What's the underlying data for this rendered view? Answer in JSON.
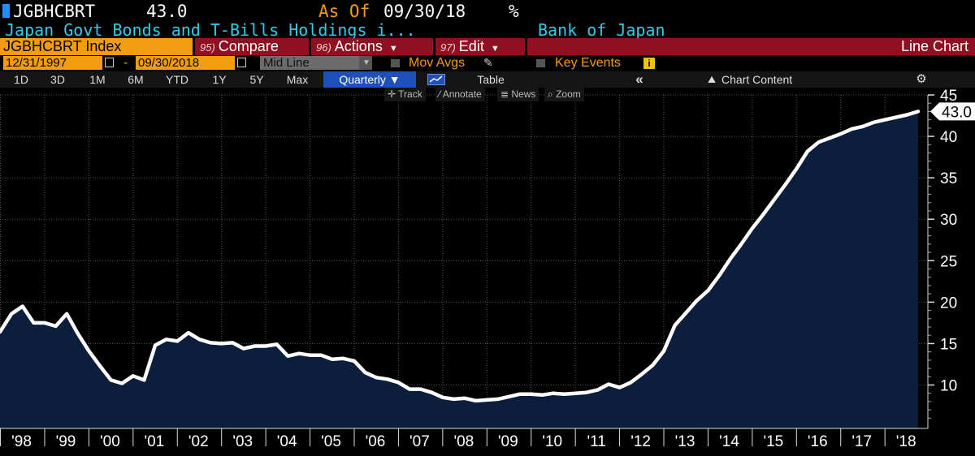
{
  "header": {
    "ticker": "JGBHCBRT",
    "last_value": "43.0",
    "as_of_label": "As Of",
    "as_of_date": "09/30/18",
    "unit": "%",
    "description": "Japan Govt Bonds and T-Bills Holdings i...",
    "source": "Bank of Japan"
  },
  "toolbar": {
    "security": "JGBHCBRT Index",
    "compare": {
      "num": "95)",
      "label": "Compare"
    },
    "actions": {
      "num": "96)",
      "label": "Actions"
    },
    "edit": {
      "num": "97)",
      "label": "Edit"
    },
    "chart_type": "Line Chart"
  },
  "range": {
    "start": "12/31/1997",
    "separator": "-",
    "end": "09/30/2018",
    "mode": "Mid Line",
    "mov_avgs": "Mov Avgs",
    "key_events": "Key Events",
    "info_badge": "i"
  },
  "periods": {
    "items": [
      "1D",
      "3D",
      "1M",
      "6M",
      "YTD",
      "1Y",
      "5Y",
      "Max"
    ],
    "frequency": "Quarterly ▼",
    "table": "Table",
    "collapse": "«",
    "chart_content": "Chart Content"
  },
  "tools": [
    "Track",
    "Annotate",
    "News",
    "Zoom"
  ],
  "colors": {
    "accent_orange": "#f39c12",
    "toolbar_red": "#8f1020",
    "header_cyan": "#36c9e8",
    "area_fill": "#0b1e3c",
    "line": "#ffffff",
    "active_tab": "#1f4fb8"
  },
  "chart_data": {
    "type": "area",
    "last_value_label": "43.0",
    "ylim": [
      5,
      45
    ],
    "yticks": [
      10,
      15,
      20,
      25,
      30,
      35,
      40,
      45
    ],
    "xlim": [
      1997.99,
      2018.75
    ],
    "xtick_labels": [
      "'98",
      "'99",
      "'00",
      "'01",
      "'02",
      "'03",
      "'04",
      "'05",
      "'06",
      "'07",
      "'08",
      "'09",
      "'10",
      "'11",
      "'12",
      "'13",
      "'14",
      "'15",
      "'16",
      "'17",
      "'18"
    ],
    "xtick_years": [
      1998,
      1999,
      2000,
      2001,
      2002,
      2003,
      2004,
      2005,
      2006,
      2007,
      2008,
      2009,
      2010,
      2011,
      2012,
      2013,
      2014,
      2015,
      2016,
      2017,
      2018
    ],
    "grid": true,
    "x": [
      1997.99,
      1998.25,
      1998.5,
      1998.75,
      1999.0,
      1999.25,
      1999.5,
      1999.75,
      2000.0,
      2000.25,
      2000.5,
      2000.75,
      2001.0,
      2001.25,
      2001.5,
      2001.75,
      2002.0,
      2002.25,
      2002.5,
      2002.75,
      2003.0,
      2003.25,
      2003.5,
      2003.75,
      2004.0,
      2004.25,
      2004.5,
      2004.75,
      2005.0,
      2005.25,
      2005.5,
      2005.75,
      2006.0,
      2006.25,
      2006.5,
      2006.75,
      2007.0,
      2007.25,
      2007.5,
      2007.75,
      2008.0,
      2008.25,
      2008.5,
      2008.75,
      2009.0,
      2009.25,
      2009.5,
      2009.75,
      2010.0,
      2010.25,
      2010.5,
      2010.75,
      2011.0,
      2011.25,
      2011.5,
      2011.75,
      2012.0,
      2012.25,
      2012.5,
      2012.75,
      2013.0,
      2013.25,
      2013.5,
      2013.75,
      2014.0,
      2014.25,
      2014.5,
      2014.75,
      2015.0,
      2015.25,
      2015.5,
      2015.75,
      2016.0,
      2016.25,
      2016.5,
      2016.75,
      2017.0,
      2017.25,
      2017.5,
      2017.75,
      2018.0,
      2018.25,
      2018.5,
      2018.75
    ],
    "values": [
      16.4,
      18.6,
      19.5,
      17.5,
      17.5,
      17.1,
      18.6,
      16.2,
      14.1,
      12.3,
      10.6,
      10.2,
      11.1,
      10.6,
      14.8,
      15.5,
      15.3,
      16.3,
      15.5,
      15.1,
      15.0,
      15.1,
      14.4,
      14.7,
      14.7,
      14.9,
      13.5,
      13.8,
      13.6,
      13.6,
      13.1,
      13.2,
      12.9,
      11.5,
      10.9,
      10.7,
      10.3,
      9.5,
      9.5,
      9.1,
      8.5,
      8.3,
      8.4,
      8.1,
      8.2,
      8.3,
      8.6,
      8.9,
      8.9,
      8.8,
      9.0,
      8.9,
      9.0,
      9.1,
      9.4,
      10.1,
      9.7,
      10.3,
      11.3,
      12.4,
      14.1,
      17.2,
      18.7,
      20.2,
      21.4,
      23.2,
      25.2,
      27.0,
      28.9,
      30.6,
      32.4,
      34.2,
      36.1,
      38.2,
      39.3,
      39.8,
      40.3,
      40.9,
      41.2,
      41.7,
      42.0,
      42.3,
      42.6,
      43.0
    ]
  }
}
